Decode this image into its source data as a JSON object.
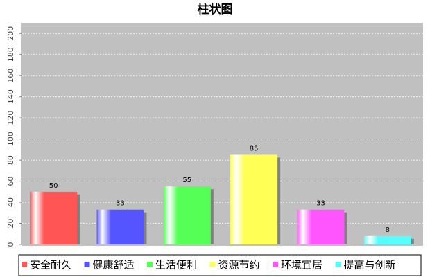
{
  "chart_data": {
    "type": "bar",
    "title": "柱状图",
    "categories": [
      null
    ],
    "series": [
      {
        "name": "安全耐久",
        "color": "#ff5555",
        "values": [
          50
        ]
      },
      {
        "name": "健康舒适",
        "color": "#5555ff",
        "values": [
          33
        ]
      },
      {
        "name": "生活便利",
        "color": "#55ff55",
        "values": [
          55
        ]
      },
      {
        "name": "资源节约",
        "color": "#ffff55",
        "values": [
          85
        ]
      },
      {
        "name": "环境宜居",
        "color": "#ff55ff",
        "values": [
          33
        ]
      },
      {
        "name": "提高与创新",
        "color": "#55ffff",
        "values": [
          8
        ]
      }
    ],
    "ylim": [
      0,
      210
    ],
    "yticks": [
      0,
      20,
      40,
      60,
      80,
      100,
      120,
      140,
      160,
      180,
      200
    ],
    "grid": true,
    "legend": "bottom"
  }
}
